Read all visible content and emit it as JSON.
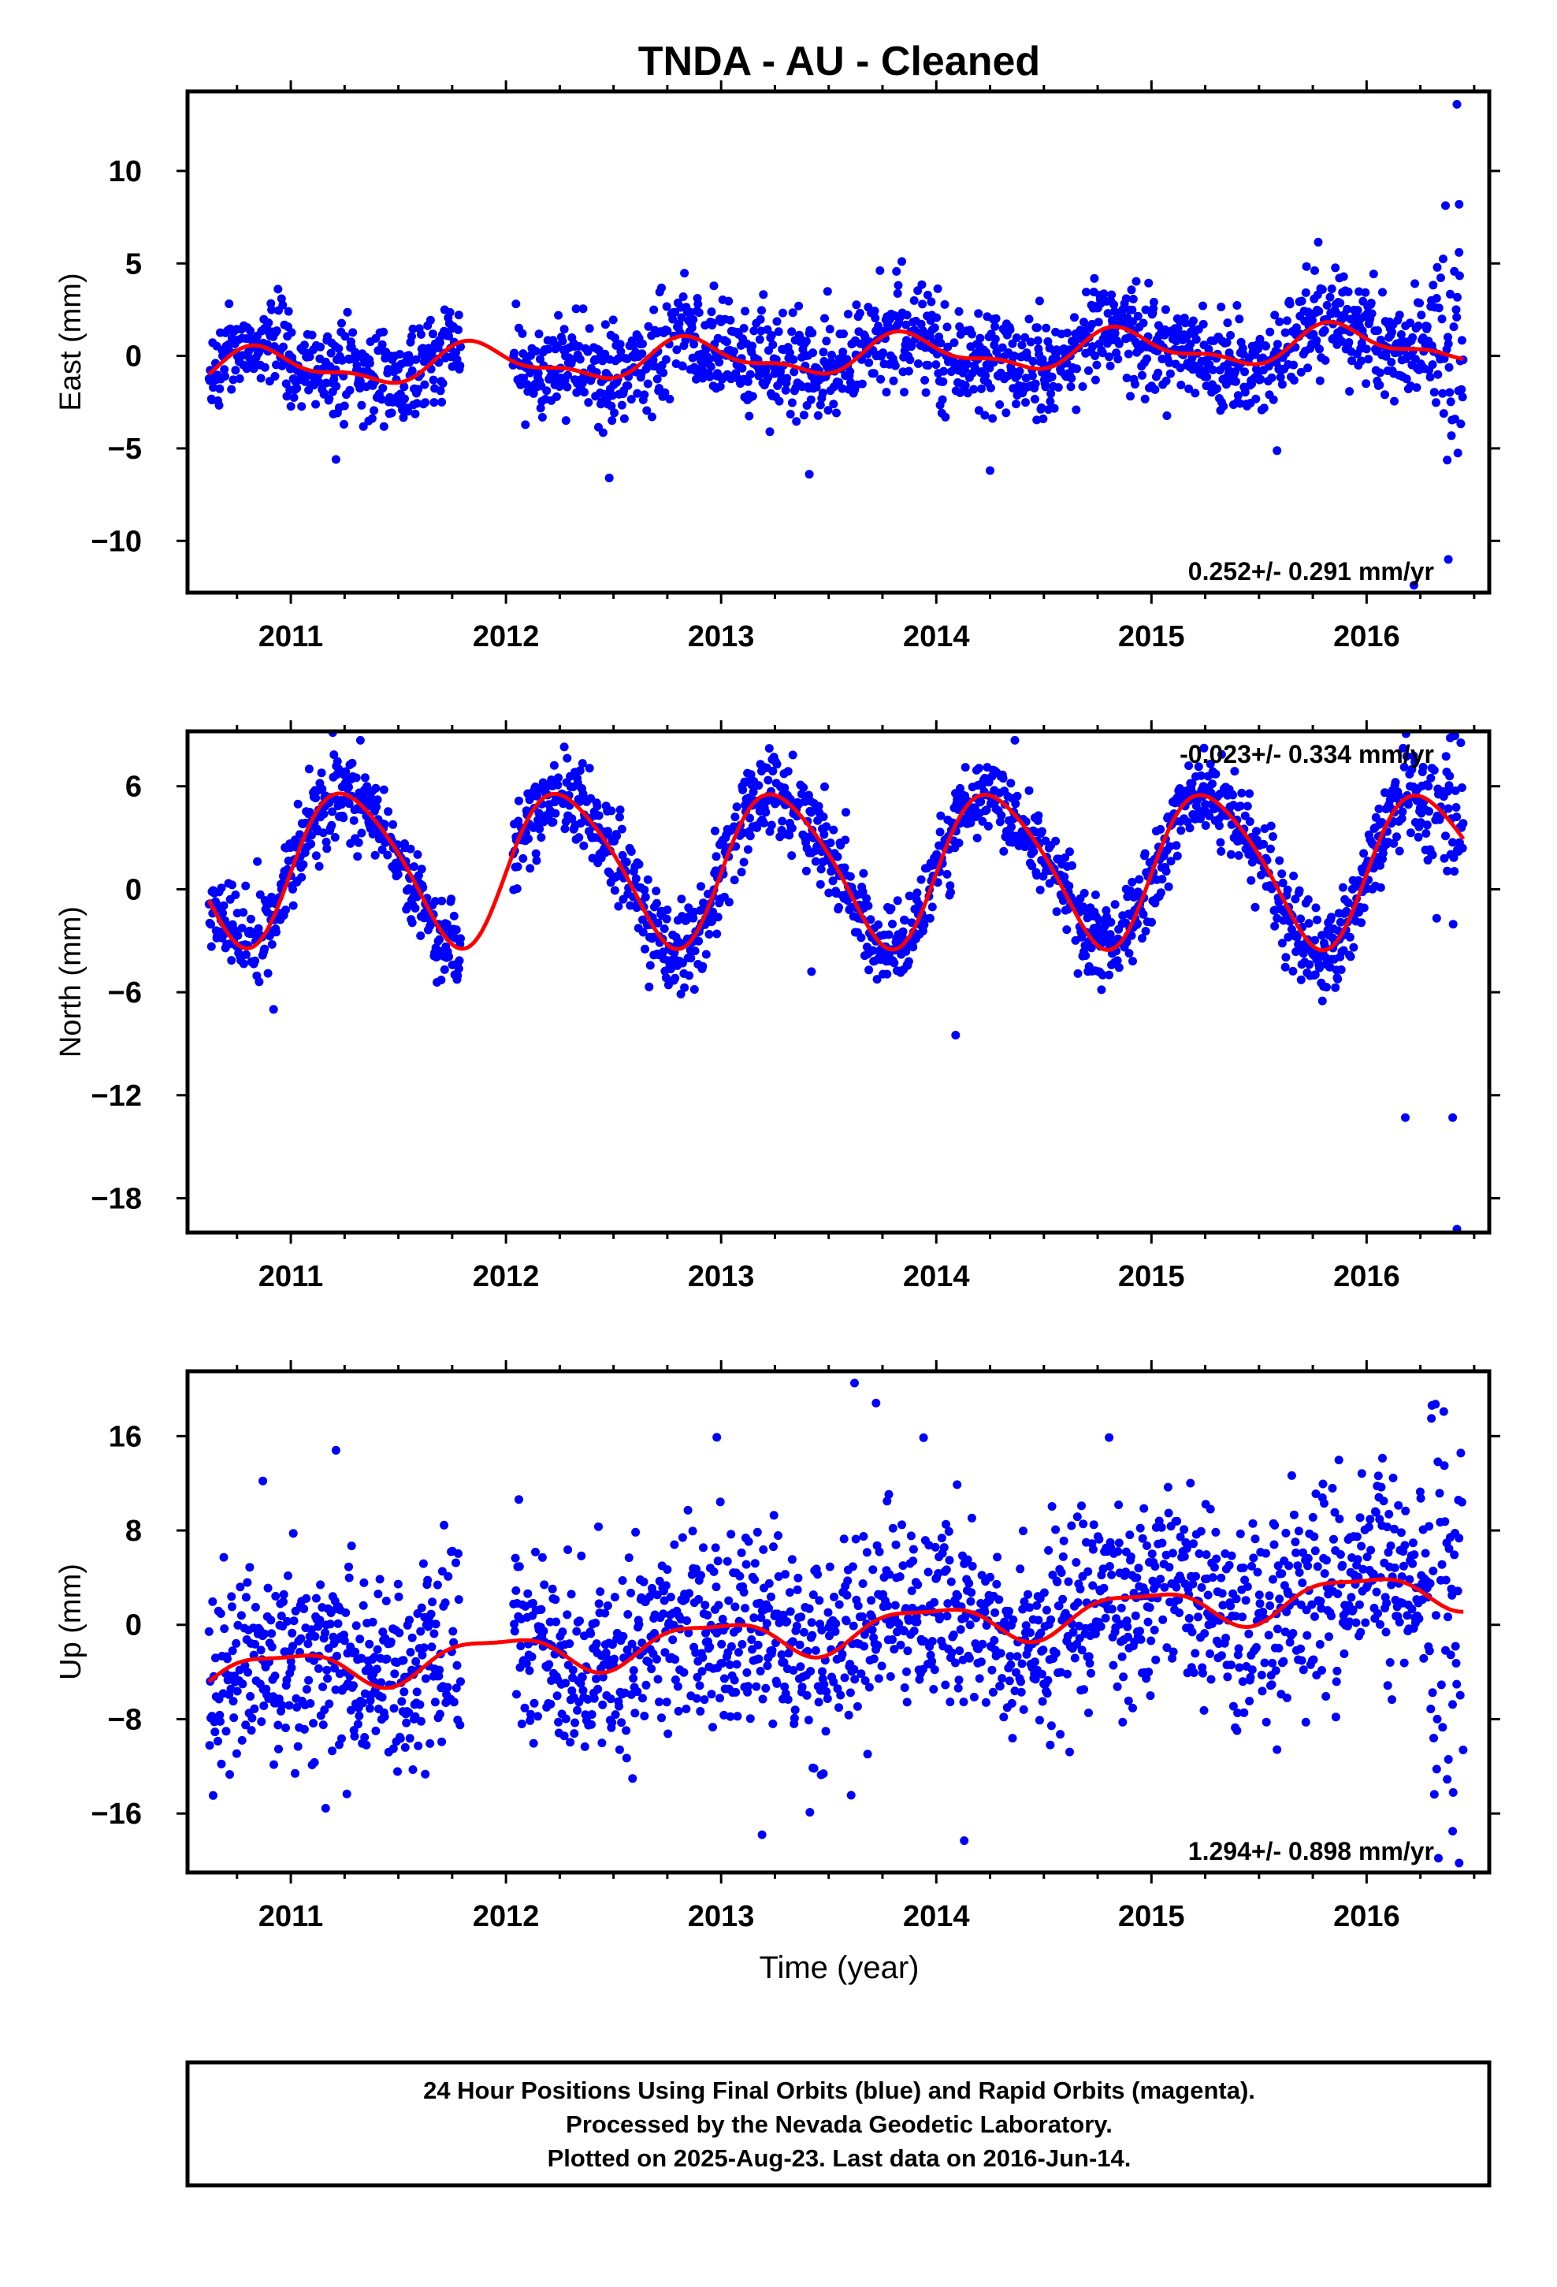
{
  "title": "TNDA  - AU - Cleaned",
  "x_axis_label": "Time (year)",
  "footer_lines": [
    "24 Hour Positions Using Final Orbits (blue) and Rapid Orbits (magenta).",
    "Processed by the Nevada Geodetic Laboratory.",
    "Plotted on 2025-Aug-23. Last data on 2016-Jun-14."
  ],
  "colors": {
    "observations": "#0000ff",
    "model": "#ff0000",
    "frame": "#000000"
  },
  "chart_data": [
    {
      "type": "scatter",
      "component": "east",
      "ylabel": "East (mm)",
      "xlim": [
        2010.52,
        2016.57
      ],
      "ylim": [
        -12.8,
        14.3
      ],
      "xticks": [
        2011,
        2012,
        2013,
        2014,
        2015,
        2016
      ],
      "yticks": [
        -10,
        -5,
        0,
        5,
        10
      ],
      "ytick_labels": [
        "−10",
        "−5",
        "0",
        "5",
        "10"
      ],
      "rate_label": "0.252+/- 0.291 mm/yr",
      "rate_position": "bottom-right",
      "data_range": [
        2010.62,
        2016.45
      ],
      "model": {
        "trend": 0.252,
        "offset": 0.0,
        "annual_amp": 0.9,
        "annual_phase": 0.87,
        "semiannual_amp": 0.4,
        "semiannual_phase": 0.3
      },
      "scatter_sd": 1.35,
      "data_gap": [
        2011.79,
        2012.03
      ],
      "outliers": [
        [
          2016.42,
          13.6
        ],
        [
          2016.38,
          -11.0
        ],
        [
          2016.22,
          -12.4
        ],
        [
          2012.48,
          -6.6
        ],
        [
          2011.21,
          -5.6
        ],
        [
          2013.41,
          -6.4
        ],
        [
          2014.25,
          -6.2
        ],
        [
          2016.43,
          8.2
        ]
      ]
    },
    {
      "type": "scatter",
      "component": "north",
      "ylabel": "North (mm)",
      "xlim": [
        2010.52,
        2016.57
      ],
      "ylim": [
        -20.0,
        9.2
      ],
      "xticks": [
        2011,
        2012,
        2013,
        2014,
        2015,
        2016
      ],
      "yticks": [
        -18,
        -12,
        -6,
        0,
        6
      ],
      "ytick_labels": [
        "−18",
        "−12",
        "−6",
        "0",
        "6"
      ],
      "rate_label": "-0.023+/- 0.334 mm/yr",
      "rate_position": "top-right",
      "data_range": [
        2010.62,
        2016.45
      ],
      "model": {
        "trend": -0.023,
        "offset": 1.3,
        "annual_amp": 4.4,
        "annual_phase": 0.27,
        "semiannual_amp": 0.6,
        "semiannual_phase": 0.1
      },
      "scatter_sd": 1.3,
      "data_gap": [
        2011.79,
        2012.03
      ],
      "outliers": [
        [
          2016.42,
          -19.8
        ],
        [
          2016.18,
          -13.3
        ],
        [
          2016.4,
          -13.3
        ],
        [
          2014.09,
          -8.5
        ],
        [
          2010.92,
          -7.0
        ],
        [
          2013.42,
          -4.8
        ]
      ]
    },
    {
      "type": "scatter",
      "component": "up",
      "ylabel": "Up (mm)",
      "xlim": [
        2010.52,
        2016.57
      ],
      "ylim": [
        -21.0,
        21.5
      ],
      "xticks": [
        2011,
        2012,
        2013,
        2014,
        2015,
        2016
      ],
      "yticks": [
        -16,
        -8,
        0,
        8,
        16
      ],
      "ytick_labels": [
        "−16",
        "−8",
        "0",
        "8",
        "16"
      ],
      "rate_label": "1.294+/- 0.898 mm/yr",
      "rate_position": "bottom-right",
      "data_range": [
        2010.62,
        2016.45
      ],
      "model": {
        "trend": 1.294,
        "offset": -0.6,
        "annual_amp": 1.6,
        "annual_phase": 0.95,
        "semiannual_amp": 0.5,
        "semiannual_phase": 0.2
      },
      "scatter_sd": 4.2,
      "data_gap": [
        2011.79,
        2012.03
      ],
      "outliers": [
        [
          2013.62,
          20.5
        ],
        [
          2013.72,
          18.8
        ],
        [
          2013.19,
          -17.8
        ],
        [
          2014.13,
          -18.3
        ],
        [
          2016.43,
          -20.2
        ],
        [
          2016.4,
          -17.5
        ],
        [
          2011.21,
          14.8
        ],
        [
          2010.87,
          12.2
        ],
        [
          2012.98,
          15.9
        ]
      ]
    }
  ]
}
